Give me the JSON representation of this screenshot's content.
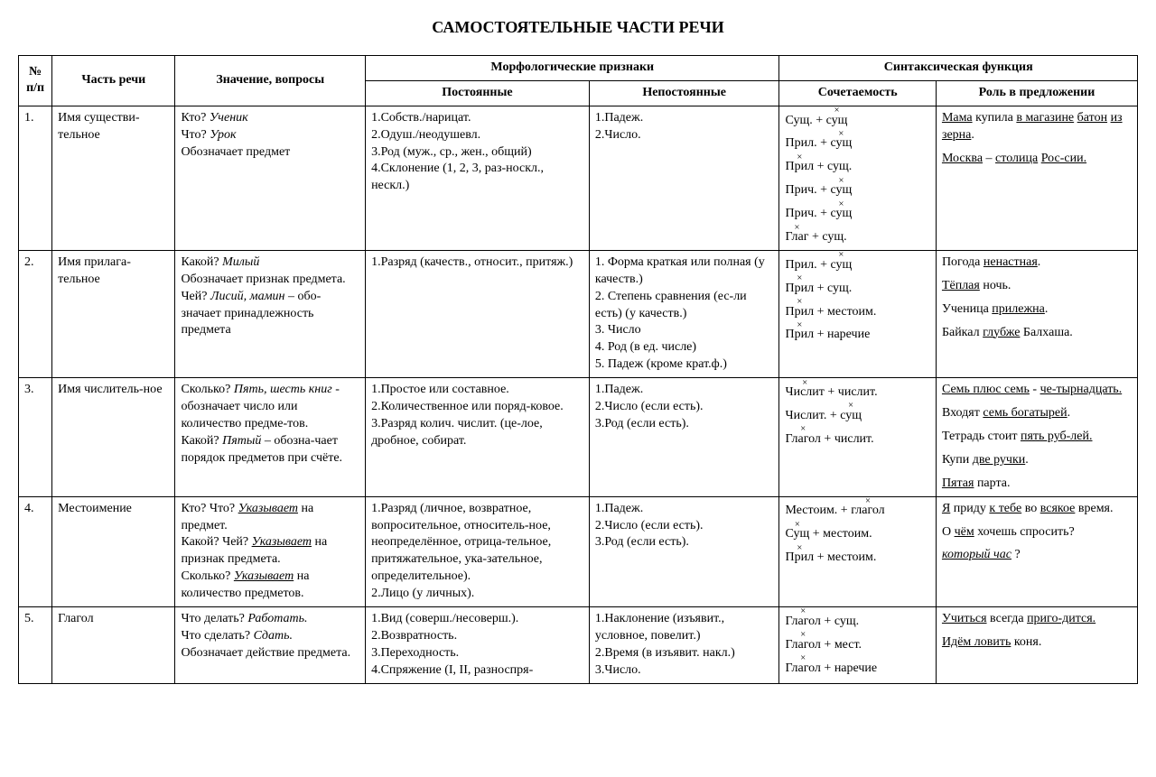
{
  "title": "САМОСТОЯТЕЛЬНЫЕ ЧАСТИ РЕЧИ",
  "headers": {
    "num": "№ п/п",
    "part": "Часть речи",
    "meaning": "Значение, вопросы",
    "morph": "Морфологические признаки",
    "perm": "Постоянные",
    "var": "Непостоянные",
    "synt": "Синтаксическая функция",
    "comb": "Сочетаемость",
    "role": "Роль в предложении"
  },
  "rows": [
    {
      "num": "1.",
      "part": "Имя существи-тельное",
      "meaning_html": "Кто? <em>Ученик</em><br>Что? <em>Урок</em><br>Обозначает предмет",
      "perm_html": "1.Собств./нарицат.<br>2.Одуш./неодушевл.<br>3.Род (муж., ср., жен., общий)<br>4.Склонение (1, 2, 3, раз-носкл., нескл.)",
      "var_html": "1.Падеж.<br>2.Число.",
      "comb_items": [
        [
          "Сущ.",
          " + ",
          "сущ.x"
        ],
        [
          "Прил.",
          " + ",
          "сущ.x"
        ],
        [
          "Прил.x",
          " + сущ."
        ],
        [
          "Прич.",
          " + ",
          "сущ.x"
        ],
        [
          "Прич.",
          " + ",
          "сущ.x"
        ],
        [
          "Глаг.x",
          " + сущ."
        ]
      ],
      "role_html": "<div class='role-line'><u>Мама</u> купила <u>в магазине</u> <u>батон</u> <u>из зерна</u>.</div><div class='role-line'><u>Москва</u> – <u>столица</u> <u>Рос-сии.</u></div>"
    },
    {
      "num": "2.",
      "part": "Имя прилага-тельное",
      "meaning_html": "Какой? <em>Милый</em><br>Обозначает признак предмета.<br>Чей? <em>Лисий, мамин</em> – обо-значает принадлежность предмета",
      "perm_html": "1.Разряд (качеств., относит., притяж.)",
      "var_html": "1. Форма краткая или полная (у качеств.)<br>2. Степень сравнения (ес-ли есть) (у качеств.)<br>3. Число<br>4. Род (в ед. числе)<br>5. Падеж (кроме крат.ф.)",
      "comb_items": [
        [
          "Прил.",
          " + ",
          "сущ.x"
        ],
        [
          "Прил.x",
          " + сущ."
        ],
        [
          "Прил.x",
          " + местоим."
        ],
        [
          "Прил.x",
          " + наречие"
        ]
      ],
      "role_html": "<div class='role-line'>Погода <u>ненастная</u>.</div><div class='role-line'><u>Тёплая</u> ночь.</div><div class='role-line'>Ученица <u>прилежна</u>.</div><div class='role-line'>Байкал <u>глубже</u> Балхаша.</div>"
    },
    {
      "num": "3.",
      "part": "Имя числитель-ное",
      "meaning_html": "Сколько? <em>Пять, шесть книг</em> - обозначает число или количество предме-тов.<br>Какой? <em>Пятый</em> – обозна-чает порядок предметов при счёте.",
      "perm_html": "1.Простое или составное.<br>2.Количественное или поряд-ковое.<br>3.Разряд колич. числит. (це-лое, дробное, собират.",
      "var_html": "1.Падеж.<br>2.Число (если есть).<br>3.Род (если есть).",
      "comb_items": [
        [
          "Числит.x",
          " + числит."
        ],
        [
          "Числит.",
          "  + ",
          "сущ.x"
        ],
        [
          "Глагол.x",
          " + числит."
        ]
      ],
      "role_html": "<div class='role-line'><u>Семь плюс семь</u> - <u>че-тырнадцать.</u></div><div class='role-line'>Входят <u>семь богатырей</u>.</div><div class='role-line'>Тетрадь стоит <u>пять руб-лей.</u></div><div class='role-line'>Купи <u>две ручки</u>.</div><div class='role-line'><u>Пятая</u> парта.</div>"
    },
    {
      "num": "4.",
      "part": "Местоимение",
      "meaning_html": "Кто? Что? <em><u>Указывает</u></em> на предмет.<br>Какой? Чей? <em><u>Указывает</u></em> на признак предмета.<br>Сколько? <em><u>Указывает</u></em> на количество предметов.",
      "perm_html": "1.Разряд (личное, возвратное, вопросительное, относитель-ное, неопределённое, отрица-тельное, притяжательное, ука-зательное, определительное).<br>2.Лицо (у личных).",
      "var_html": "1.Падеж.<br>2.Число (если есть).<br>3.Род (если есть).",
      "comb_items": [
        [
          "Местоим.",
          " + ",
          "глагол.x"
        ],
        [
          "Сущ.x",
          " + местоим."
        ],
        [
          "Прил.x",
          " + местоим."
        ]
      ],
      "role_html": "<div class='role-line'><u>Я</u> приду <u>к тебе</u> во <u>всякое</u> время.</div><div class='role-line'>О <u>чём</u> хочешь спросить?</div><div class='role-line'><span class='hand'>который час</span> ?</div>"
    },
    {
      "num": "5.",
      "part": "Глагол",
      "meaning_html": "Что делать? <em>Работать.</em><br>Что сделать? <em>Сдать.</em><br>Обозначает действие предмета.",
      "perm_html": "1.Вид (соверш./несоверш.).<br>2.Возвратность.<br>3.Переходность.<br>4.Спряжение (I, II, разноспря-",
      "var_html": "1.Наклонение (изъявит., условное, повелит.)<br>2.Время (в изъявит. накл.)<br>3.Число.",
      "comb_items": [
        [
          "Глагол.x",
          " + сущ."
        ],
        [
          "Глагол.x",
          " + мест."
        ],
        [
          "Глагол.x",
          " + наречие"
        ]
      ],
      "role_html": "<div class='role-line'><u>Учиться</u> всегда <u>приго-дится.</u></div><div class='role-line'><u>Идём ловить</u> коня.</div>"
    }
  ]
}
